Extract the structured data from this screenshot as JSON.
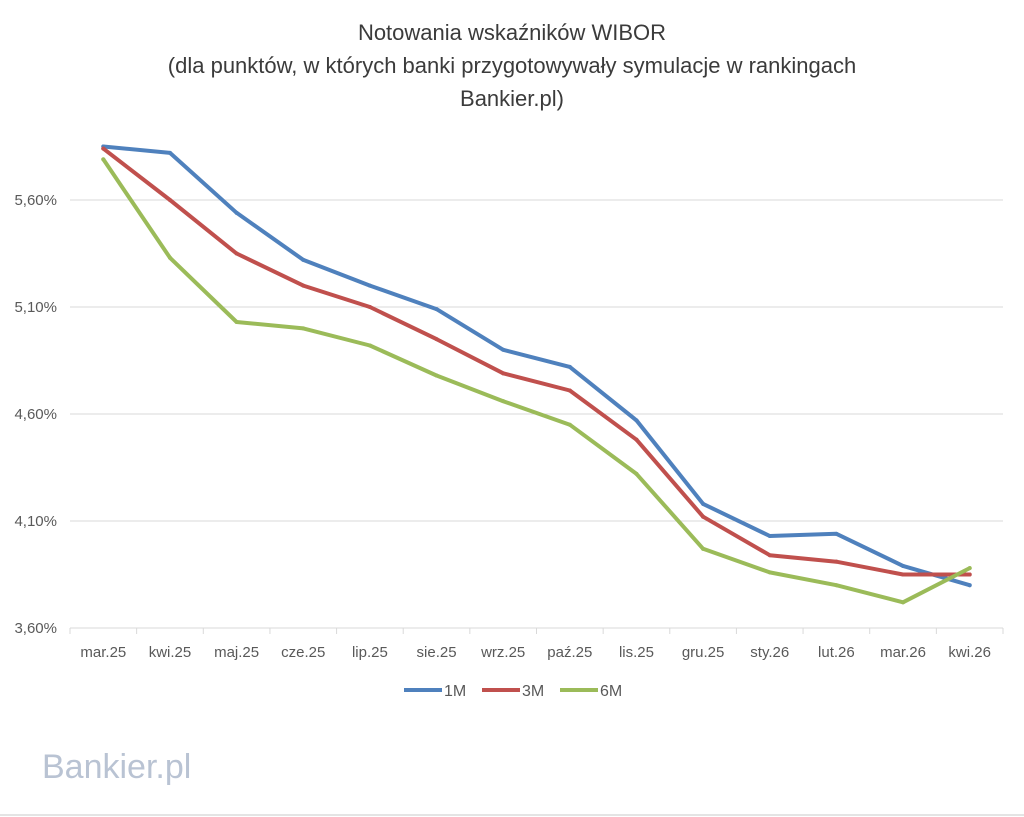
{
  "chart_data": {
    "type": "line",
    "title": [
      "Notowania wskaźników WIBOR",
      "(dla punktów, w których banki przygotowywały symulacje w rankingach",
      "Bankier.pl)"
    ],
    "xlabel": "",
    "ylabel": "",
    "categories": [
      "mar.25",
      "kwi.25",
      "maj.25",
      "cze.25",
      "lip.25",
      "sie.25",
      "wrz.25",
      "paź.25",
      "lis.25",
      "gru.25",
      "sty.26",
      "lut.26",
      "mar.26",
      "kwi.26"
    ],
    "series": [
      {
        "name": "1M",
        "color": "#4f81bd",
        "values": [
          5.85,
          5.82,
          5.54,
          5.32,
          5.2,
          5.09,
          4.9,
          4.82,
          4.57,
          4.18,
          4.03,
          4.04,
          3.89,
          3.8
        ]
      },
      {
        "name": "3M",
        "color": "#c0504d",
        "values": [
          5.84,
          5.6,
          5.35,
          5.2,
          5.1,
          4.95,
          4.79,
          4.71,
          4.48,
          4.12,
          3.94,
          3.91,
          3.85,
          3.85
        ]
      },
      {
        "name": "6M",
        "color": "#9bbb59",
        "values": [
          5.79,
          5.33,
          5.03,
          5.0,
          4.92,
          4.78,
          4.66,
          4.55,
          4.32,
          3.97,
          3.86,
          3.8,
          3.72,
          3.88
        ]
      }
    ],
    "yticks": [
      "3,60%",
      "4,10%",
      "4,60%",
      "5,10%",
      "5,60%"
    ],
    "ytick_values": [
      3.6,
      4.1,
      4.6,
      5.1,
      5.6
    ],
    "ylim": [
      3.6,
      5.85
    ],
    "grid": true,
    "legend_position": "bottom"
  },
  "watermark": "Bankier.pl"
}
